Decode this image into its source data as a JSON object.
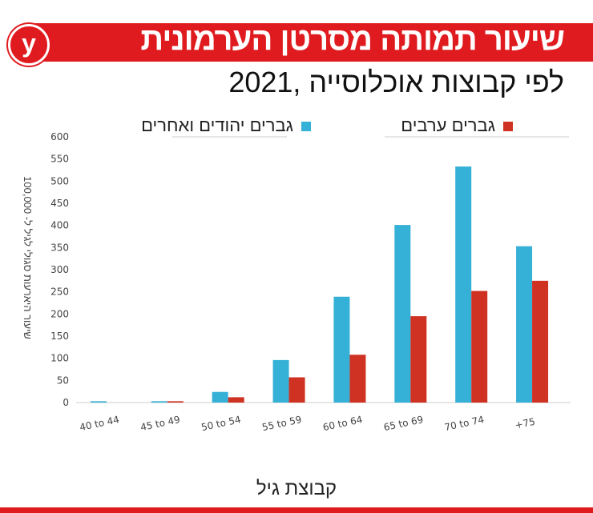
{
  "header": {
    "title": "שיעור תמותה מסרטן הערמונית",
    "logo_letter": "y",
    "subtitle": "לפי קבוצות אוכלוסייה ,2021"
  },
  "colors": {
    "brand": "#e01b1f",
    "jewish": "#35b0d6",
    "arab": "#cf3222"
  },
  "chart_data": {
    "type": "bar",
    "title": "שיעור תמותה מסרטן הערמונית",
    "subtitle": "לפי קבוצות אוכלוסייה ,2021",
    "xlabel": "קבוצת גיל",
    "ylabel": "שיעור היארעות סגולי לגיל ל- 100,000",
    "ylim": [
      0,
      600
    ],
    "yticks": [
      0,
      50,
      100,
      150,
      200,
      250,
      300,
      350,
      400,
      450,
      500,
      550,
      600
    ],
    "grid": false,
    "legend_placement": "top",
    "categories": [
      "40 to 44",
      "45 to 49",
      "50 to 54",
      "55 to 59",
      "60 to 64",
      "65 to 69",
      "70 to 74",
      "+75"
    ],
    "series": [
      {
        "name": "גברים יהודים ואחרים",
        "color": "#35b0d6",
        "values": [
          3,
          3,
          24,
          96,
          239,
          401,
          533,
          353
        ]
      },
      {
        "name": "גברים ערבים",
        "color": "#cf3222",
        "values": [
          0,
          3,
          12,
          57,
          108,
          195,
          252,
          275
        ]
      }
    ]
  }
}
